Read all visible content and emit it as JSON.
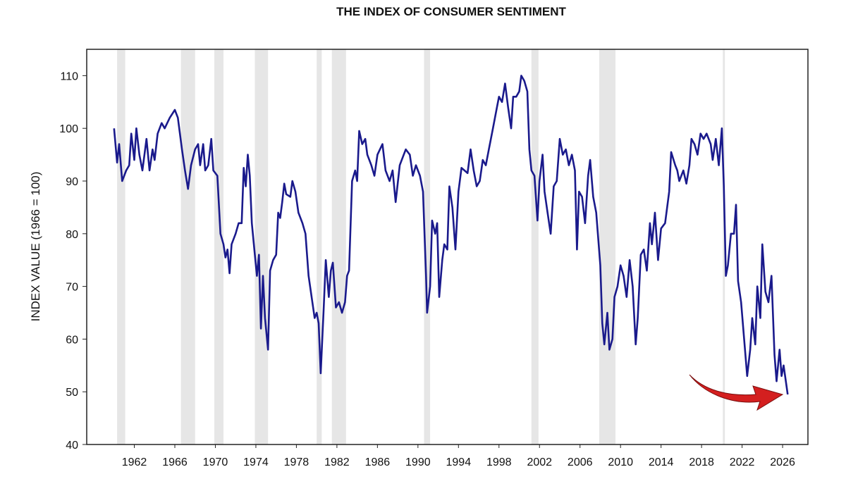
{
  "chart_data": {
    "type": "line",
    "title": "THE INDEX OF CONSUMER SENTIMENT",
    "y_label": "INDEX VALUE (1966 = 100)",
    "xlim": [
      1957.3,
      2028.5
    ],
    "xticks": [
      1962,
      1966,
      1970,
      1974,
      1978,
      1982,
      1986,
      1990,
      1994,
      1998,
      2002,
      2006,
      2010,
      2014,
      2018,
      2022,
      2026
    ],
    "ylim": [
      40,
      115
    ],
    "yticks": [
      40,
      50,
      60,
      70,
      80,
      90,
      100,
      110
    ],
    "grid": false,
    "shaded_color": "#e6e6e6",
    "shaded_periods": [
      [
        1960.3,
        1961.1
      ],
      [
        1966.6,
        1968.0
      ],
      [
        1969.9,
        1970.8
      ],
      [
        1973.9,
        1975.2
      ],
      [
        1980.0,
        1980.5
      ],
      [
        1981.5,
        1982.9
      ],
      [
        1990.6,
        1991.2
      ],
      [
        2001.2,
        2001.9
      ],
      [
        2007.9,
        2009.5
      ],
      [
        2020.1,
        2020.3
      ]
    ],
    "series": [
      {
        "color": "#1a1a8c",
        "x": [
          1960.0,
          1960.3,
          1960.5,
          1960.8,
          1961.2,
          1961.5,
          1961.7,
          1962.0,
          1962.2,
          1962.5,
          1962.8,
          1963.2,
          1963.5,
          1963.8,
          1964.0,
          1964.3,
          1964.7,
          1965.0,
          1965.5,
          1966.0,
          1966.3,
          1966.7,
          1967.0,
          1967.3,
          1967.6,
          1968.0,
          1968.3,
          1968.5,
          1968.8,
          1969.0,
          1969.3,
          1969.6,
          1969.8,
          1970.2,
          1970.5,
          1970.8,
          1971.0,
          1971.2,
          1971.4,
          1971.6,
          1972.0,
          1972.3,
          1972.6,
          1972.8,
          1973.0,
          1973.2,
          1973.4,
          1973.6,
          1973.9,
          1974.1,
          1974.3,
          1974.5,
          1974.7,
          1974.9,
          1975.2,
          1975.4,
          1975.7,
          1976.0,
          1976.2,
          1976.4,
          1976.6,
          1976.8,
          1977.0,
          1977.4,
          1977.6,
          1977.9,
          1978.2,
          1978.6,
          1978.9,
          1979.2,
          1979.5,
          1979.8,
          1980.0,
          1980.2,
          1980.4,
          1980.7,
          1980.9,
          1981.2,
          1981.4,
          1981.6,
          1981.9,
          1982.2,
          1982.5,
          1982.8,
          1983.0,
          1983.2,
          1983.5,
          1983.8,
          1984.0,
          1984.2,
          1984.5,
          1984.8,
          1985.0,
          1985.4,
          1985.7,
          1986.0,
          1986.5,
          1986.8,
          1987.2,
          1987.5,
          1987.8,
          1988.2,
          1988.6,
          1988.8,
          1989.2,
          1989.5,
          1989.8,
          1990.2,
          1990.5,
          1990.8,
          1990.9,
          1991.2,
          1991.4,
          1991.7,
          1991.9,
          1992.1,
          1992.4,
          1992.6,
          1992.9,
          1993.1,
          1993.4,
          1993.7,
          1994.0,
          1994.3,
          1994.6,
          1994.9,
          1995.2,
          1995.5,
          1995.8,
          1996.1,
          1996.4,
          1996.7,
          1997.0,
          1997.4,
          1997.8,
          1998.0,
          1998.3,
          1998.6,
          1998.9,
          1999.2,
          1999.4,
          1999.7,
          2000.0,
          2000.2,
          2000.5,
          2000.8,
          2001.0,
          2001.2,
          2001.5,
          2001.8,
          2002.0,
          2002.3,
          2002.5,
          2002.8,
          2003.1,
          2003.4,
          2003.7,
          2004.0,
          2004.3,
          2004.6,
          2004.9,
          2005.2,
          2005.5,
          2005.7,
          2005.9,
          2006.2,
          2006.5,
          2006.8,
          2007.0,
          2007.3,
          2007.6,
          2008.0,
          2008.2,
          2008.4,
          2008.7,
          2008.9,
          2009.2,
          2009.4,
          2009.7,
          2010.0,
          2010.3,
          2010.6,
          2010.9,
          2011.2,
          2011.5,
          2011.7,
          2012.0,
          2012.3,
          2012.6,
          2012.9,
          2013.1,
          2013.4,
          2013.7,
          2014.0,
          2014.4,
          2014.8,
          2015.0,
          2015.4,
          2015.6,
          2015.8,
          2016.2,
          2016.5,
          2016.8,
          2017.0,
          2017.3,
          2017.6,
          2017.9,
          2018.2,
          2018.5,
          2018.9,
          2019.1,
          2019.4,
          2019.7,
          2020.0,
          2020.2,
          2020.4,
          2020.6,
          2020.9,
          2021.2,
          2021.4,
          2021.6,
          2021.9,
          2022.2,
          2022.5,
          2022.8,
          2023.0,
          2023.3,
          2023.5,
          2023.8,
          2024.0,
          2024.3,
          2024.6,
          2024.9,
          2025.2,
          2025.4,
          2025.7,
          2025.9,
          2026.1,
          2026.5
        ],
        "values": [
          100,
          93.5,
          97,
          90,
          92,
          93,
          99,
          94,
          100,
          95,
          92,
          98,
          92,
          96,
          94,
          99,
          101,
          100,
          102,
          103.5,
          102,
          96,
          92,
          88.5,
          93,
          96,
          97,
          93,
          97,
          92,
          93,
          98,
          92,
          91,
          80,
          78,
          75.5,
          77,
          72.5,
          78,
          80,
          82,
          82,
          92.5,
          89,
          95,
          91,
          82,
          76,
          72,
          76,
          62,
          72,
          64,
          58,
          73,
          75,
          76,
          84,
          83,
          86,
          89.5,
          87.5,
          87,
          90,
          88,
          84,
          82,
          80,
          72,
          68,
          64,
          65,
          63,
          53.5,
          66,
          75,
          68,
          73,
          74.5,
          66,
          67,
          65,
          67,
          72,
          73,
          90,
          92,
          90,
          99.5,
          97,
          98,
          95,
          93,
          91,
          95,
          97,
          92,
          90,
          92,
          86,
          93,
          95,
          96,
          95,
          91,
          93,
          91,
          88,
          72,
          65,
          70,
          82.5,
          80,
          82,
          68,
          75,
          78,
          77,
          89,
          85,
          77,
          88,
          92.5,
          92,
          91.5,
          96,
          92,
          89,
          90,
          94,
          93,
          96,
          100,
          104,
          106,
          105,
          108.5,
          104,
          100,
          106,
          106,
          107,
          110,
          109,
          107,
          96,
          92,
          91,
          82.5,
          90,
          95,
          88,
          84,
          80,
          89,
          90,
          98,
          95,
          96,
          93,
          95,
          92,
          77,
          88,
          87,
          82,
          91,
          94,
          87,
          84,
          74,
          63,
          59,
          65,
          58,
          60,
          68,
          70,
          74,
          72,
          68,
          75,
          70,
          59,
          64,
          76,
          77,
          73,
          82,
          78,
          84,
          75,
          81,
          82,
          88,
          95.5,
          93,
          92,
          90,
          92,
          89.5,
          93,
          98,
          97,
          95,
          99,
          98,
          99,
          97,
          94,
          98,
          93,
          100,
          89,
          72,
          74,
          80,
          80,
          85.5,
          71,
          67,
          60,
          53,
          58,
          64,
          59,
          70,
          64,
          78,
          69,
          67,
          72,
          57,
          52,
          58,
          53,
          55,
          49.5
        ]
      }
    ]
  }
}
